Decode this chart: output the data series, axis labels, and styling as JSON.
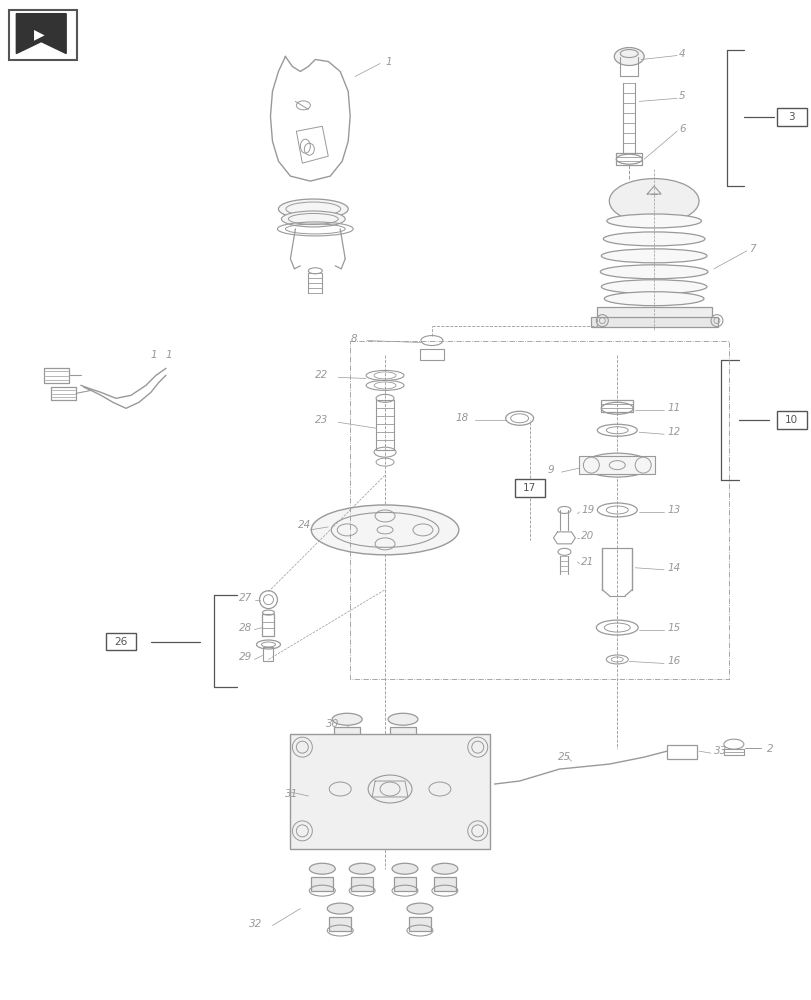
{
  "bg_color": "#ffffff",
  "lc": "#999999",
  "dc": "#555555",
  "label_c": "#999999",
  "fig_width": 8.12,
  "fig_height": 10.0
}
